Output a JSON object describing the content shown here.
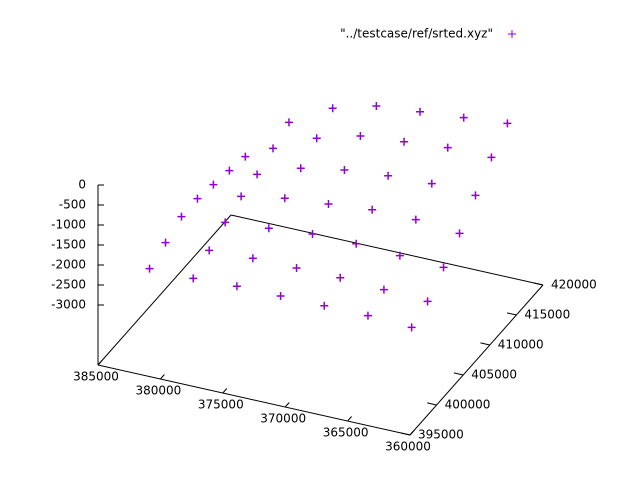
{
  "chart_data": {
    "type": "scatter3d",
    "xlim": [
      385000,
      360000
    ],
    "xticks": [
      385000,
      380000,
      375000,
      370000,
      365000,
      360000
    ],
    "ylim": [
      395000,
      420000
    ],
    "yticks": [
      395000,
      400000,
      405000,
      410000,
      415000,
      420000
    ],
    "zlim": [
      -3000,
      0
    ],
    "zticks": [
      0,
      -500,
      -1000,
      -1500,
      -2000,
      -2500,
      -3000
    ],
    "legend": "top-right",
    "series": [
      {
        "name": "\"../testcase/ref/srted.xyz\"",
        "color": "#9400d3",
        "x": [
          383000,
          379500,
          376000,
          372500,
          369000,
          365500,
          362000,
          383000,
          379500,
          376000,
          372500,
          369000,
          365500,
          362000,
          383000,
          379500,
          376000,
          372500,
          369000,
          365500,
          362000,
          383000,
          379500,
          376000,
          372500,
          369000,
          365500,
          362000,
          383000,
          379500,
          376000,
          372500,
          369000,
          365500,
          362000,
          383000,
          379500,
          376000,
          372500,
          369000,
          365500,
          362000,
          383000,
          379500,
          376000,
          372500,
          369000,
          365500,
          362000
        ],
        "y": [
          400000,
          400000,
          400000,
          400000,
          400000,
          400000,
          400000,
          403000,
          403000,
          403000,
          403000,
          403000,
          403000,
          403000,
          406000,
          406000,
          406000,
          406000,
          406000,
          406000,
          406000,
          409000,
          409000,
          409000,
          409000,
          409000,
          409000,
          409000,
          412000,
          412000,
          412000,
          412000,
          412000,
          412000,
          412000,
          415000,
          415000,
          415000,
          415000,
          415000,
          415000,
          415000,
          418000,
          418000,
          418000,
          418000,
          418000,
          418000,
          418000
        ],
        "z": [
          -2700,
          -2700,
          -2650,
          -2650,
          -2650,
          -2650,
          -2700,
          -2500,
          -2450,
          -2400,
          -2400,
          -2400,
          -2450,
          -2500,
          -2300,
          -2200,
          -2100,
          -2000,
          -2000,
          -2050,
          -2100,
          -2300,
          -2000,
          -1800,
          -1700,
          -1600,
          -1600,
          -1700,
          -2400,
          -1900,
          -1500,
          -1300,
          -1200,
          -1150,
          -1200,
          -2500,
          -1700,
          -1200,
          -900,
          -800,
          -700,
          -700,
          -2600,
          -1500,
          -900,
          -600,
          -500,
          -400,
          -300
        ]
      }
    ]
  }
}
